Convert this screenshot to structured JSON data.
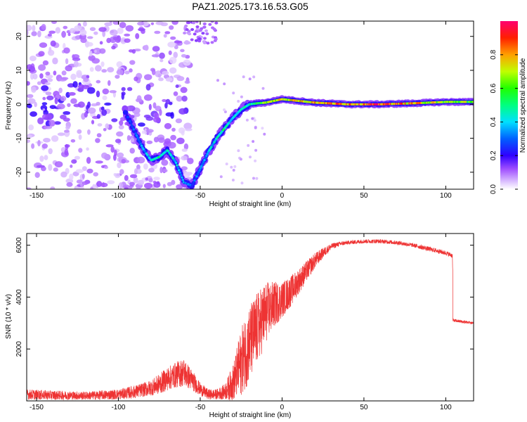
{
  "title": "PAZ1.2025.173.16.53.G05",
  "chart_data": [
    {
      "type": "heatmap",
      "xlabel": "Height of straight line (km)",
      "ylabel": "Frequency (Hz)",
      "xlim": [
        -156,
        117
      ],
      "ylim": [
        -25,
        24.5
      ],
      "xticks": [
        -150,
        -100,
        -50,
        0,
        50,
        100
      ],
      "yticks": [
        -20,
        -10,
        0,
        10,
        20
      ],
      "grid": false,
      "colorbar": {
        "label": "Normalized spectral amplitude",
        "range": [
          0,
          1
        ],
        "ticks": [
          "0.0",
          "0.2",
          "0.4",
          "0.6",
          "0.8"
        ]
      },
      "ridge": {
        "x": [
          -96,
          -90,
          -85,
          -80,
          -75,
          -70,
          -65,
          -60,
          -55,
          -50,
          -45,
          -40,
          -35,
          -30,
          -25,
          -20,
          -15,
          -10,
          -5,
          0,
          20,
          40,
          60,
          80,
          100,
          117
        ],
        "y": [
          -2,
          -8,
          -13,
          -16.5,
          -15.5,
          -13.5,
          -17,
          -23,
          -24,
          -19,
          -14,
          -10,
          -7,
          -4,
          -1.5,
          0,
          0.3,
          0.5,
          1,
          1.5,
          0.5,
          0,
          0,
          0.3,
          0.7,
          0.7
        ],
        "amplitude": [
          0.25,
          0.3,
          0.35,
          0.45,
          0.5,
          0.45,
          0.45,
          0.4,
          0.3,
          0.35,
          0.4,
          0.45,
          0.5,
          0.45,
          0.45,
          0.5,
          0.6,
          0.7,
          0.75,
          0.8,
          0.85,
          0.9,
          0.95,
          0.85,
          0.7,
          0.7
        ]
      }
    },
    {
      "type": "line",
      "xlabel": "Height of straight line (km)",
      "ylabel": "SNR (10 * v/v)",
      "xlim": [
        -156,
        117
      ],
      "ylim": [
        0,
        6450
      ],
      "xticks": [
        -150,
        -100,
        -50,
        0,
        50,
        100
      ],
      "yticks": [
        2000,
        4000,
        6000
      ],
      "grid": false,
      "color": "#ee3333",
      "series": [
        {
          "x": [
            -156,
            -140,
            -120,
            -100,
            -90,
            -80,
            -75,
            -70,
            -65,
            -60,
            -55,
            -50,
            -45,
            -40,
            -35,
            -30,
            -25,
            -20,
            -15,
            -10,
            -5,
            0,
            5,
            10,
            15,
            20,
            25,
            30,
            35,
            40,
            50,
            60,
            70,
            80,
            90,
            100,
            104,
            105,
            110,
            117
          ],
          "y": [
            250,
            220,
            200,
            250,
            350,
            500,
            650,
            850,
            1000,
            1100,
            800,
            450,
            250,
            250,
            350,
            700,
            1500,
            2200,
            2800,
            3400,
            3700,
            3900,
            4200,
            4600,
            5000,
            5400,
            5700,
            5950,
            6050,
            6100,
            6150,
            6150,
            6100,
            6000,
            5850,
            5700,
            5600,
            3100,
            3050,
            3000
          ],
          "noise": [
            200,
            180,
            160,
            200,
            250,
            300,
            400,
            450,
            500,
            550,
            400,
            250,
            200,
            200,
            300,
            700,
            1300,
            1500,
            1400,
            1200,
            900,
            700,
            600,
            500,
            400,
            300,
            200,
            120,
            90,
            80,
            80,
            80,
            80,
            80,
            90,
            90,
            90,
            60,
            60,
            60
          ]
        }
      ]
    }
  ]
}
